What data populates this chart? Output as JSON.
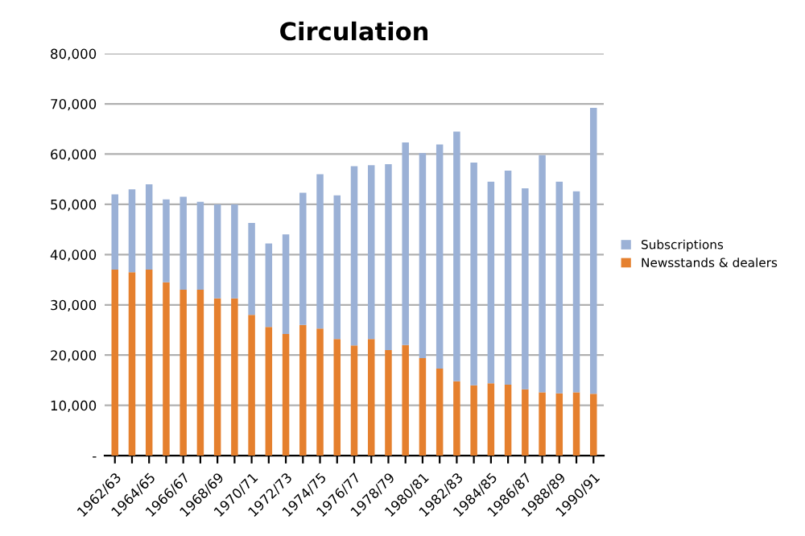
{
  "chart_data": {
    "type": "bar",
    "title": "Circulation",
    "stacked": true,
    "categories": [
      "1962/63",
      null,
      "1964/65",
      null,
      "1966/67",
      null,
      "1968/69",
      null,
      "1970/71",
      null,
      "1972/73",
      null,
      "1974/75",
      null,
      "1976/77",
      null,
      "1978/79",
      null,
      "1980/81",
      null,
      "1982/83",
      null,
      "1984/85",
      null,
      "1986/87",
      null,
      "1988/89",
      null,
      "1990/91"
    ],
    "series": [
      {
        "name": "Newsstands & dealers",
        "color": "#e5802e",
        "values": [
          37000,
          36500,
          37000,
          34500,
          33000,
          33000,
          31300,
          31300,
          28000,
          25600,
          24200,
          26000,
          25300,
          23200,
          21900,
          23200,
          21000,
          22000,
          19400,
          17300,
          14800,
          14000,
          14400,
          14100,
          13200,
          12600,
          12400,
          12600,
          12300
        ]
      },
      {
        "name": "Subscriptions",
        "color": "#9bb1d6",
        "values": [
          15000,
          16500,
          17000,
          16500,
          18500,
          17500,
          18700,
          18700,
          18300,
          16600,
          19800,
          26300,
          30700,
          28600,
          35700,
          34600,
          37000,
          40300,
          40800,
          44600,
          49700,
          44300,
          40100,
          42600,
          40000,
          47200,
          42100,
          40000,
          56900
        ]
      }
    ],
    "ylim": [
      0,
      80000
    ],
    "yticks": [
      {
        "value": 0,
        "label": "-"
      },
      {
        "value": 10000,
        "label": "10,000"
      },
      {
        "value": 20000,
        "label": "20,000"
      },
      {
        "value": 30000,
        "label": "30,000"
      },
      {
        "value": 40000,
        "label": "40,000"
      },
      {
        "value": 50000,
        "label": "50,000"
      },
      {
        "value": 60000,
        "label": "60,000"
      },
      {
        "value": 70000,
        "label": "70,000"
      },
      {
        "value": 80000,
        "label": "80,000"
      }
    ],
    "grid": "y",
    "legend": "right"
  }
}
